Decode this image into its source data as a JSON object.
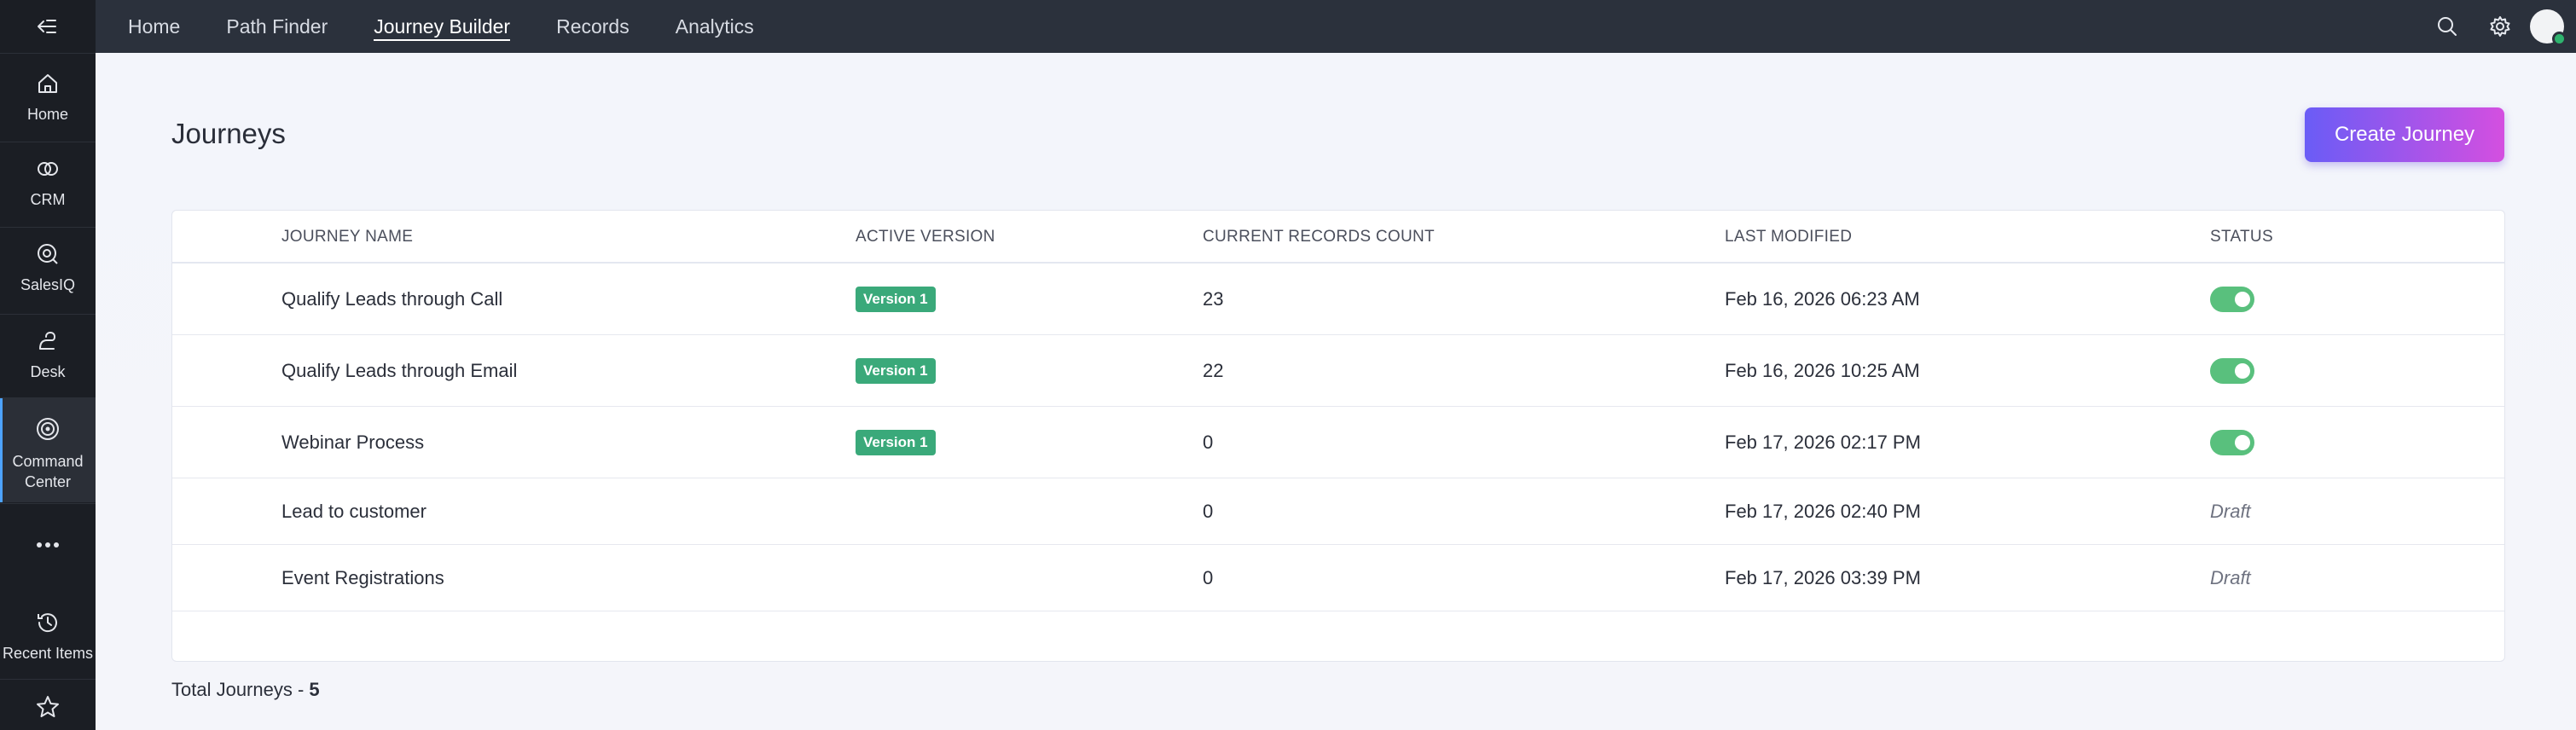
{
  "rail": {
    "items": [
      {
        "label": "Home",
        "icon": "home-icon"
      },
      {
        "label": "CRM",
        "icon": "crm-icon"
      },
      {
        "label": "SalesIQ",
        "icon": "salesiq-icon"
      },
      {
        "label": "Desk",
        "icon": "desk-icon"
      },
      {
        "label": "Command Center",
        "icon": "command-center-icon",
        "active": true
      },
      {
        "label": "",
        "icon": "more-icon"
      },
      {
        "label": "Recent Items",
        "icon": "history-icon"
      },
      {
        "label": "",
        "icon": "star-icon"
      }
    ]
  },
  "topnav": {
    "items": [
      "Home",
      "Path Finder",
      "Journey Builder",
      "Records",
      "Analytics"
    ],
    "active": "Journey Builder"
  },
  "page": {
    "title": "Journeys",
    "create_button": "Create Journey"
  },
  "table": {
    "headers": [
      "JOURNEY NAME",
      "ACTIVE VERSION",
      "CURRENT RECORDS COUNT",
      "LAST MODIFIED",
      "STATUS"
    ],
    "rows": [
      {
        "name": "Qualify Leads through Call",
        "version": "Version 1",
        "count": "23",
        "modified": "Feb 16, 2026 06:23 AM",
        "status": "active"
      },
      {
        "name": "Qualify Leads through Email",
        "version": "Version 1",
        "count": "22",
        "modified": "Feb 16, 2026 10:25 AM",
        "status": "active"
      },
      {
        "name": "Webinar Process",
        "version": "Version 1",
        "count": "0",
        "modified": "Feb 17, 2026 02:17 PM",
        "status": "active"
      },
      {
        "name": "Lead to customer",
        "version": "",
        "count": "0",
        "modified": "Feb 17, 2026 02:40 PM",
        "status": "Draft"
      },
      {
        "name": "Event Registrations",
        "version": "",
        "count": "0",
        "modified": "Feb 17, 2026 03:39 PM",
        "status": "Draft"
      }
    ]
  },
  "footer": {
    "total_label": "Total Journeys - ",
    "total_value": "5"
  },
  "colors": {
    "rail_bg": "#1b1e24",
    "topbar_bg": "#2b313c",
    "badge": "#3aa97a",
    "toggle_on": "#59c07d",
    "button_gradient_start": "#6a5cf6",
    "button_gradient_end": "#d44fe0",
    "online_dot": "#2fb36e"
  }
}
